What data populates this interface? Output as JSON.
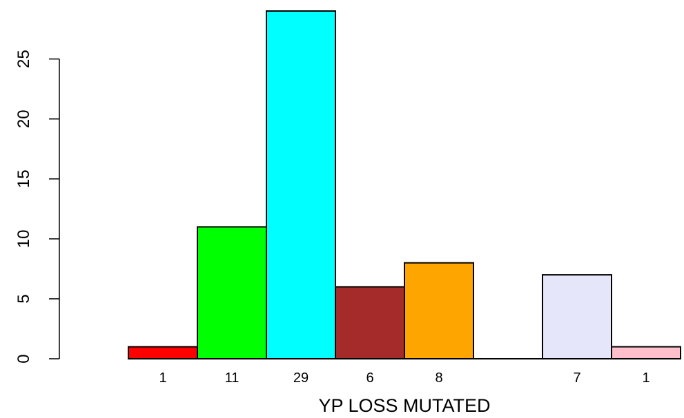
{
  "chart_data": {
    "type": "bar",
    "title": "",
    "xlabel": "YP LOSS MUTATED",
    "ylabel": "",
    "ylim": [
      0,
      29
    ],
    "yticks": [
      0,
      5,
      10,
      15,
      20,
      25
    ],
    "grid": false,
    "legend": "none",
    "bars": [
      {
        "label": "1",
        "value": 1,
        "color": "#ff0000"
      },
      {
        "label": "11",
        "value": 11,
        "color": "#00ff00"
      },
      {
        "label": "29",
        "value": 29,
        "color": "#00ffff"
      },
      {
        "label": "6",
        "value": 6,
        "color": "#a52a2a"
      },
      {
        "label": "8",
        "value": 8,
        "color": "#ffa500"
      },
      {
        "label": "",
        "value": 0,
        "color": "#ffffff"
      },
      {
        "label": "7",
        "value": 7,
        "color": "#e6e6fa"
      },
      {
        "label": "1",
        "value": 1,
        "color": "#ffc0cb"
      }
    ]
  }
}
